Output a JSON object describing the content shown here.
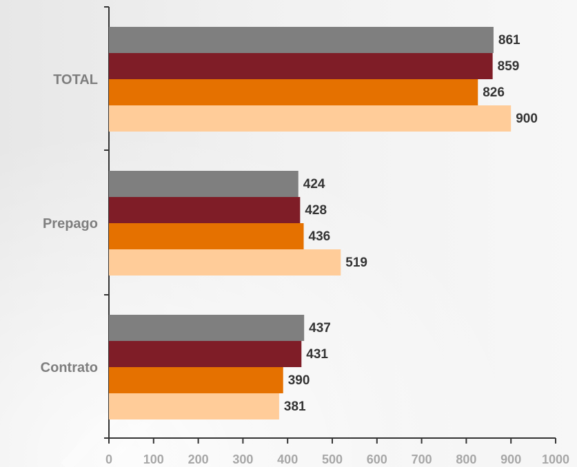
{
  "chart_data": {
    "type": "bar",
    "orientation": "horizontal",
    "categories": [
      "TOTAL",
      "Prepago",
      "Contrato"
    ],
    "series": [
      {
        "values": [
          861,
          424,
          437
        ],
        "color": "#7f7f7f"
      },
      {
        "values": [
          859,
          428,
          431
        ],
        "color": "#7f1d27"
      },
      {
        "values": [
          826,
          436,
          390
        ],
        "color": "#e57100"
      },
      {
        "values": [
          900,
          519,
          381
        ],
        "color": "#ffcc99"
      }
    ],
    "xlim": [
      0,
      1000
    ],
    "x_ticks": [
      "0",
      "100",
      "200",
      "300",
      "400",
      "500",
      "600",
      "700",
      "800",
      "900",
      "1000"
    ],
    "grid": false,
    "legend": "none"
  }
}
